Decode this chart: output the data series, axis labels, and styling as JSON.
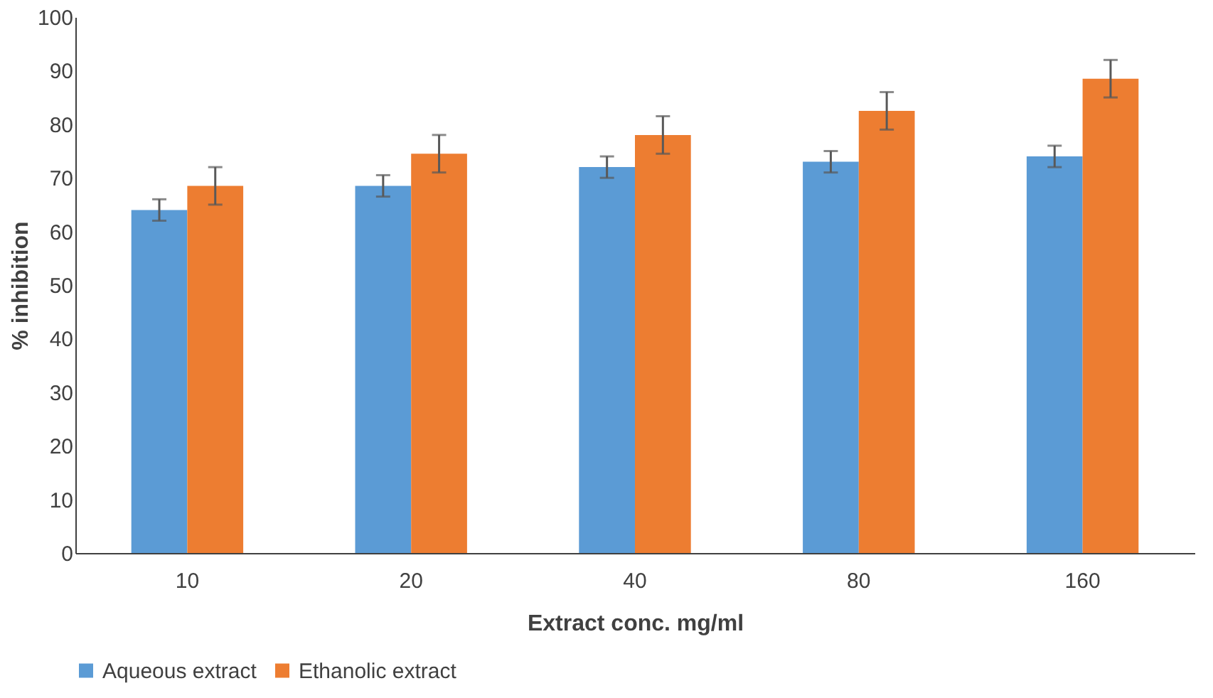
{
  "chart_data": {
    "type": "bar",
    "xlabel": "Extract conc. mg/ml",
    "ylabel": "% inhibition",
    "categories": [
      "10",
      "20",
      "40",
      "80",
      "160"
    ],
    "series": [
      {
        "name": "Aqueous extract",
        "color": "#5b9bd5",
        "values": [
          64,
          68.5,
          72,
          73,
          74
        ],
        "errors": [
          2,
          2,
          2,
          2,
          2
        ]
      },
      {
        "name": "Ethanolic extract",
        "color": "#ed7d31",
        "values": [
          68.5,
          74.5,
          78,
          82.5,
          88.5
        ],
        "errors": [
          3.5,
          3.5,
          3.5,
          3.5,
          3.5
        ]
      }
    ],
    "ylim": [
      0,
      100
    ],
    "yticks": [
      0,
      10,
      20,
      30,
      40,
      50,
      60,
      70,
      80,
      90,
      100
    ],
    "grid": false,
    "legend": "bottom"
  }
}
